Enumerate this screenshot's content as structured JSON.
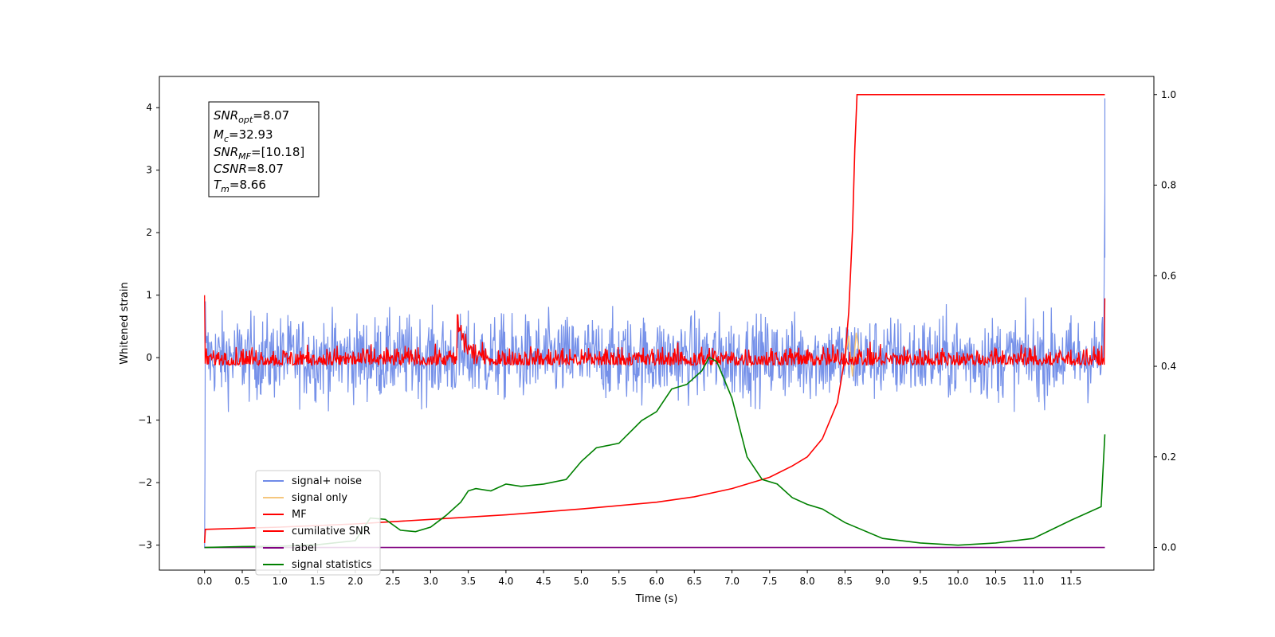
{
  "chart_data": {
    "type": "line",
    "xlabel": "Time (s)",
    "ylabel_left": "Whitened strain",
    "xlim": [
      -0.6,
      12.6
    ],
    "ylim_left": [
      -3.4,
      4.5
    ],
    "ylim_right": [
      -0.05,
      1.04
    ],
    "x_ticks": [
      "0.0",
      "0.5",
      "1.0",
      "1.5",
      "2.0",
      "2.5",
      "3.0",
      "3.5",
      "4.0",
      "4.5",
      "5.0",
      "5.5",
      "6.0",
      "6.5",
      "7.0",
      "7.5",
      "8.0",
      "8.5",
      "9.0",
      "9.5",
      "10.0",
      "10.5",
      "11.0",
      "11.5"
    ],
    "y_ticks_left": [
      "−3",
      "−2",
      "−1",
      "0",
      "1",
      "2",
      "3",
      "4"
    ],
    "y_ticks_right": [
      "0.0",
      "0.2",
      "0.4",
      "0.6",
      "0.8",
      "1.0"
    ],
    "grid": false,
    "legend_position": "lower-left",
    "annotation": {
      "snr_opt_label": "SNR",
      "snr_opt_sub": "opt",
      "snr_opt_value": "=8.07",
      "mc_label": "M",
      "mc_sub": "c",
      "mc_value": "=32.93",
      "snr_mf_label": "SNR",
      "snr_mf_sub": "MF",
      "snr_mf_value": "=[10.18]",
      "csnr_label": "CSNR",
      "csnr_value": "=8.07",
      "tm_label": "T",
      "tm_sub": "m",
      "tm_value": "=8.66"
    },
    "series": [
      {
        "name": "signal+ noise",
        "axis": "left",
        "color": "#6f8be8",
        "description_kind": "noise",
        "amplitude": 0.33,
        "x_range": [
          0.0,
          11.95
        ],
        "start_values": [
          -3.05,
          -1.8,
          0.9
        ],
        "end_values": [
          2.65,
          4.15,
          1.6
        ]
      },
      {
        "name": "signal only",
        "axis": "left",
        "color": "#f5c77e",
        "description_kind": "burst",
        "x": [
          8.5,
          8.55,
          8.6,
          8.65,
          8.7
        ],
        "y": [
          0.0,
          0.35,
          -0.3,
          0.4,
          0.0
        ]
      },
      {
        "name": "MF",
        "axis": "left",
        "color": "#ff0000",
        "description_kind": "noise",
        "amplitude": 0.1,
        "x_range": [
          0.0,
          11.95
        ],
        "bump_center": 3.35,
        "bump_height": 0.75,
        "start_value": 1.0,
        "end_value": 0.95
      },
      {
        "name": "cumilative SNR",
        "axis": "right",
        "color": "#ff0000",
        "x": [
          0.0,
          0.01,
          1.0,
          2.0,
          3.0,
          4.0,
          5.0,
          6.0,
          6.5,
          7.0,
          7.5,
          7.8,
          8.0,
          8.2,
          8.4,
          8.5,
          8.55,
          8.6,
          8.63,
          8.66,
          8.7,
          11.95
        ],
        "y": [
          0.01,
          0.04,
          0.045,
          0.052,
          0.062,
          0.072,
          0.085,
          0.1,
          0.112,
          0.13,
          0.155,
          0.18,
          0.2,
          0.24,
          0.32,
          0.42,
          0.52,
          0.7,
          0.88,
          1.0,
          1.0,
          1.0
        ]
      },
      {
        "name": "label",
        "axis": "right",
        "color": "#800080",
        "x": [
          0.0,
          11.95
        ],
        "y": [
          0.0,
          0.0
        ]
      },
      {
        "name": "signal statistics",
        "axis": "right",
        "color": "#008000",
        "x": [
          0.0,
          0.5,
          1.0,
          1.5,
          2.0,
          2.2,
          2.4,
          2.6,
          2.8,
          3.0,
          3.2,
          3.4,
          3.5,
          3.6,
          3.8,
          4.0,
          4.2,
          4.5,
          4.8,
          5.0,
          5.2,
          5.5,
          5.8,
          6.0,
          6.2,
          6.4,
          6.6,
          6.7,
          6.8,
          7.0,
          7.2,
          7.4,
          7.6,
          7.8,
          8.0,
          8.2,
          8.5,
          9.0,
          9.5,
          10.0,
          10.5,
          11.0,
          11.5,
          11.9,
          11.95
        ],
        "y": [
          0.0,
          0.002,
          0.003,
          0.006,
          0.015,
          0.065,
          0.062,
          0.038,
          0.035,
          0.045,
          0.07,
          0.1,
          0.125,
          0.13,
          0.125,
          0.14,
          0.135,
          0.14,
          0.15,
          0.19,
          0.22,
          0.23,
          0.28,
          0.3,
          0.35,
          0.36,
          0.39,
          0.42,
          0.41,
          0.33,
          0.2,
          0.15,
          0.14,
          0.11,
          0.095,
          0.085,
          0.055,
          0.02,
          0.01,
          0.005,
          0.01,
          0.02,
          0.06,
          0.09,
          0.25
        ]
      }
    ]
  }
}
